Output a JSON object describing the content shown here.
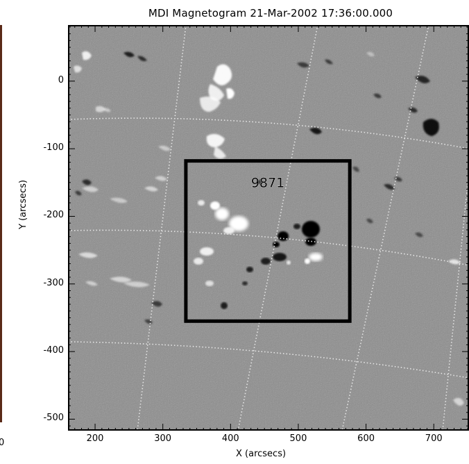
{
  "title": "MDI Magnetogram 21-Mar-2002 17:36:00.000",
  "xlabel": "X (arcsecs)",
  "ylabel": "Y (arcsecs)",
  "region_label": "9871",
  "left_edge_tick": "0",
  "xticks": [
    {
      "label": "200",
      "value": 200
    },
    {
      "label": "300",
      "value": 300
    },
    {
      "label": "400",
      "value": 400
    },
    {
      "label": "500",
      "value": 500
    },
    {
      "label": "600",
      "value": 600
    },
    {
      "label": "700",
      "value": 700
    }
  ],
  "yticks": [
    {
      "label": "0",
      "value": 0
    },
    {
      "label": "-100",
      "value": -100
    },
    {
      "label": "-200",
      "value": -200
    },
    {
      "label": "-300",
      "value": -300
    },
    {
      "label": "-400",
      "value": -400
    },
    {
      "label": "-500",
      "value": -500
    }
  ],
  "axes": {
    "xlim": [
      160,
      752
    ],
    "ylim": [
      -517,
      83
    ]
  },
  "region_box": {
    "x_range": [
      334,
      576
    ],
    "y_range": [
      -355,
      -118
    ]
  },
  "colors": {
    "background_gray": "#8c8c8c",
    "positive_polarity": "#ffffff",
    "negative_polarity": "#000000",
    "grid": "#e6e6e6",
    "box": "#000000"
  }
}
